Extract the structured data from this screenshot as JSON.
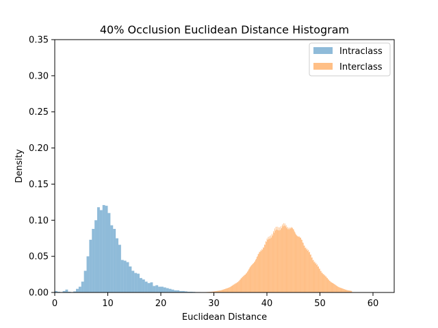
{
  "chart_data": {
    "type": "bar",
    "title": "40% Occlusion Euclidean Distance Histogram",
    "xlabel": "Euclidean Distance",
    "ylabel": "Density",
    "xlim": [
      0,
      64
    ],
    "ylim": [
      0,
      0.35
    ],
    "xticks": [
      0,
      10,
      20,
      30,
      40,
      50,
      60
    ],
    "yticks": [
      0.0,
      0.05,
      0.1,
      0.15,
      0.2,
      0.25,
      0.3,
      0.35
    ],
    "ytick_labels": [
      "0.00",
      "0.05",
      "0.10",
      "0.15",
      "0.20",
      "0.25",
      "0.30",
      "0.35"
    ],
    "grid": false,
    "legend": "top-right",
    "series": [
      {
        "name": "Intraclass",
        "color": "#1f77b4",
        "alpha": 0.5,
        "bin_width": 0.5,
        "bins": [
          [
            0.0,
            0.002
          ],
          [
            0.5,
            0.001
          ],
          [
            1.0,
            0.0005
          ],
          [
            1.5,
            0.002
          ],
          [
            2.0,
            0.004
          ],
          [
            2.5,
            0.001
          ],
          [
            3.0,
            0.0005
          ],
          [
            3.5,
            0.0015
          ],
          [
            4.0,
            0.005
          ],
          [
            4.5,
            0.008
          ],
          [
            5.0,
            0.015
          ],
          [
            5.5,
            0.03
          ],
          [
            6.0,
            0.05
          ],
          [
            6.5,
            0.073
          ],
          [
            7.0,
            0.088
          ],
          [
            7.5,
            0.1
          ],
          [
            8.0,
            0.118
          ],
          [
            8.5,
            0.114
          ],
          [
            9.0,
            0.121
          ],
          [
            9.5,
            0.12
          ],
          [
            10.0,
            0.11
          ],
          [
            10.5,
            0.093
          ],
          [
            11.0,
            0.088
          ],
          [
            11.5,
            0.075
          ],
          [
            12.0,
            0.066
          ],
          [
            12.5,
            0.045
          ],
          [
            13.0,
            0.044
          ],
          [
            13.5,
            0.042
          ],
          [
            14.0,
            0.036
          ],
          [
            14.5,
            0.03
          ],
          [
            15.0,
            0.027
          ],
          [
            15.5,
            0.026
          ],
          [
            16.0,
            0.02
          ],
          [
            16.5,
            0.018
          ],
          [
            17.0,
            0.015
          ],
          [
            17.5,
            0.013
          ],
          [
            18.0,
            0.014
          ],
          [
            18.5,
            0.009
          ],
          [
            19.0,
            0.01
          ],
          [
            19.5,
            0.008
          ],
          [
            20.0,
            0.008
          ],
          [
            20.5,
            0.007
          ],
          [
            21.0,
            0.006
          ],
          [
            21.5,
            0.005
          ],
          [
            22.0,
            0.004
          ],
          [
            22.5,
            0.003
          ],
          [
            23.0,
            0.003
          ],
          [
            23.5,
            0.002
          ],
          [
            24.0,
            0.002
          ],
          [
            24.5,
            0.0015
          ],
          [
            25.0,
            0.001
          ],
          [
            25.5,
            0.001
          ],
          [
            26.0,
            0.0008
          ],
          [
            26.5,
            0.0005
          ],
          [
            27.0,
            0.0005
          ]
        ]
      },
      {
        "name": "Interclass",
        "color": "#ff7f0e",
        "alpha": 0.5,
        "bin_width": 0.12,
        "gaussian": {
          "mean": 43.3,
          "sd": 4.6,
          "peak": 0.092,
          "from": 21,
          "to": 56
        }
      }
    ]
  }
}
